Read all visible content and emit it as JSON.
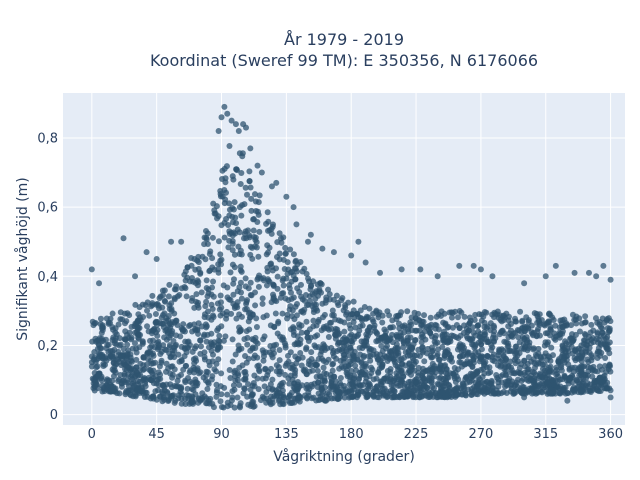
{
  "chart_data": {
    "type": "scatter",
    "title_line1": "År 1979 - 2019",
    "title_line2": "Koordinat (Sweref 99 TM): E 350356, N 6176066",
    "xlabel": "Vågriktning (grader)",
    "ylabel": "Signifikant våghöjd (m)",
    "xlim": [
      -20,
      370
    ],
    "ylim": [
      -0.03,
      0.93
    ],
    "x_ticks": [
      0,
      45,
      90,
      135,
      180,
      225,
      270,
      315,
      360
    ],
    "x_tick_labels": [
      "0",
      "45",
      "90",
      "135",
      "180",
      "225",
      "270",
      "315",
      "360"
    ],
    "y_ticks": [
      0,
      0.2,
      0.4,
      0.6,
      0.8
    ],
    "y_tick_labels": [
      "0",
      "0,2",
      "0,4",
      "0,6",
      "0,8"
    ],
    "grid": true,
    "legend": "none",
    "marker_color": "#2f5470",
    "background_color": "#e5ecf6",
    "envelope": {
      "x": [
        0,
        20,
        45,
        60,
        75,
        85,
        90,
        95,
        100,
        105,
        110,
        120,
        135,
        150,
        165,
        180,
        200,
        225,
        250,
        270,
        300,
        330,
        360
      ],
      "y_low": [
        0.07,
        0.06,
        0.04,
        0.03,
        0.03,
        0.02,
        0.02,
        0.02,
        0.02,
        0.02,
        0.02,
        0.03,
        0.03,
        0.04,
        0.04,
        0.05,
        0.05,
        0.05,
        0.05,
        0.06,
        0.06,
        0.06,
        0.07
      ],
      "y_high": [
        0.28,
        0.3,
        0.35,
        0.4,
        0.5,
        0.62,
        0.72,
        0.78,
        0.8,
        0.76,
        0.7,
        0.6,
        0.5,
        0.42,
        0.36,
        0.33,
        0.3,
        0.3,
        0.3,
        0.3,
        0.3,
        0.29,
        0.28
      ]
    },
    "outliers": [
      [
        0,
        0.42
      ],
      [
        5,
        0.38
      ],
      [
        22,
        0.51
      ],
      [
        30,
        0.4
      ],
      [
        38,
        0.47
      ],
      [
        45,
        0.45
      ],
      [
        55,
        0.5
      ],
      [
        62,
        0.5
      ],
      [
        88,
        0.82
      ],
      [
        90,
        0.86
      ],
      [
        92,
        0.89
      ],
      [
        94,
        0.87
      ],
      [
        97,
        0.85
      ],
      [
        100,
        0.84
      ],
      [
        102,
        0.82
      ],
      [
        105,
        0.84
      ],
      [
        107,
        0.83
      ],
      [
        110,
        0.77
      ],
      [
        115,
        0.72
      ],
      [
        118,
        0.7
      ],
      [
        125,
        0.66
      ],
      [
        128,
        0.67
      ],
      [
        135,
        0.63
      ],
      [
        140,
        0.6
      ],
      [
        142,
        0.55
      ],
      [
        150,
        0.5
      ],
      [
        152,
        0.52
      ],
      [
        160,
        0.48
      ],
      [
        168,
        0.47
      ],
      [
        180,
        0.46
      ],
      [
        185,
        0.5
      ],
      [
        190,
        0.44
      ],
      [
        200,
        0.41
      ],
      [
        215,
        0.42
      ],
      [
        228,
        0.42
      ],
      [
        240,
        0.4
      ],
      [
        255,
        0.43
      ],
      [
        265,
        0.43
      ],
      [
        270,
        0.42
      ],
      [
        278,
        0.4
      ],
      [
        300,
        0.38
      ],
      [
        315,
        0.4
      ],
      [
        322,
        0.43
      ],
      [
        335,
        0.41
      ],
      [
        345,
        0.41
      ],
      [
        350,
        0.4
      ],
      [
        355,
        0.43
      ],
      [
        360,
        0.39
      ],
      [
        300,
        0.05
      ],
      [
        330,
        0.04
      ],
      [
        360,
        0.05
      ]
    ]
  }
}
